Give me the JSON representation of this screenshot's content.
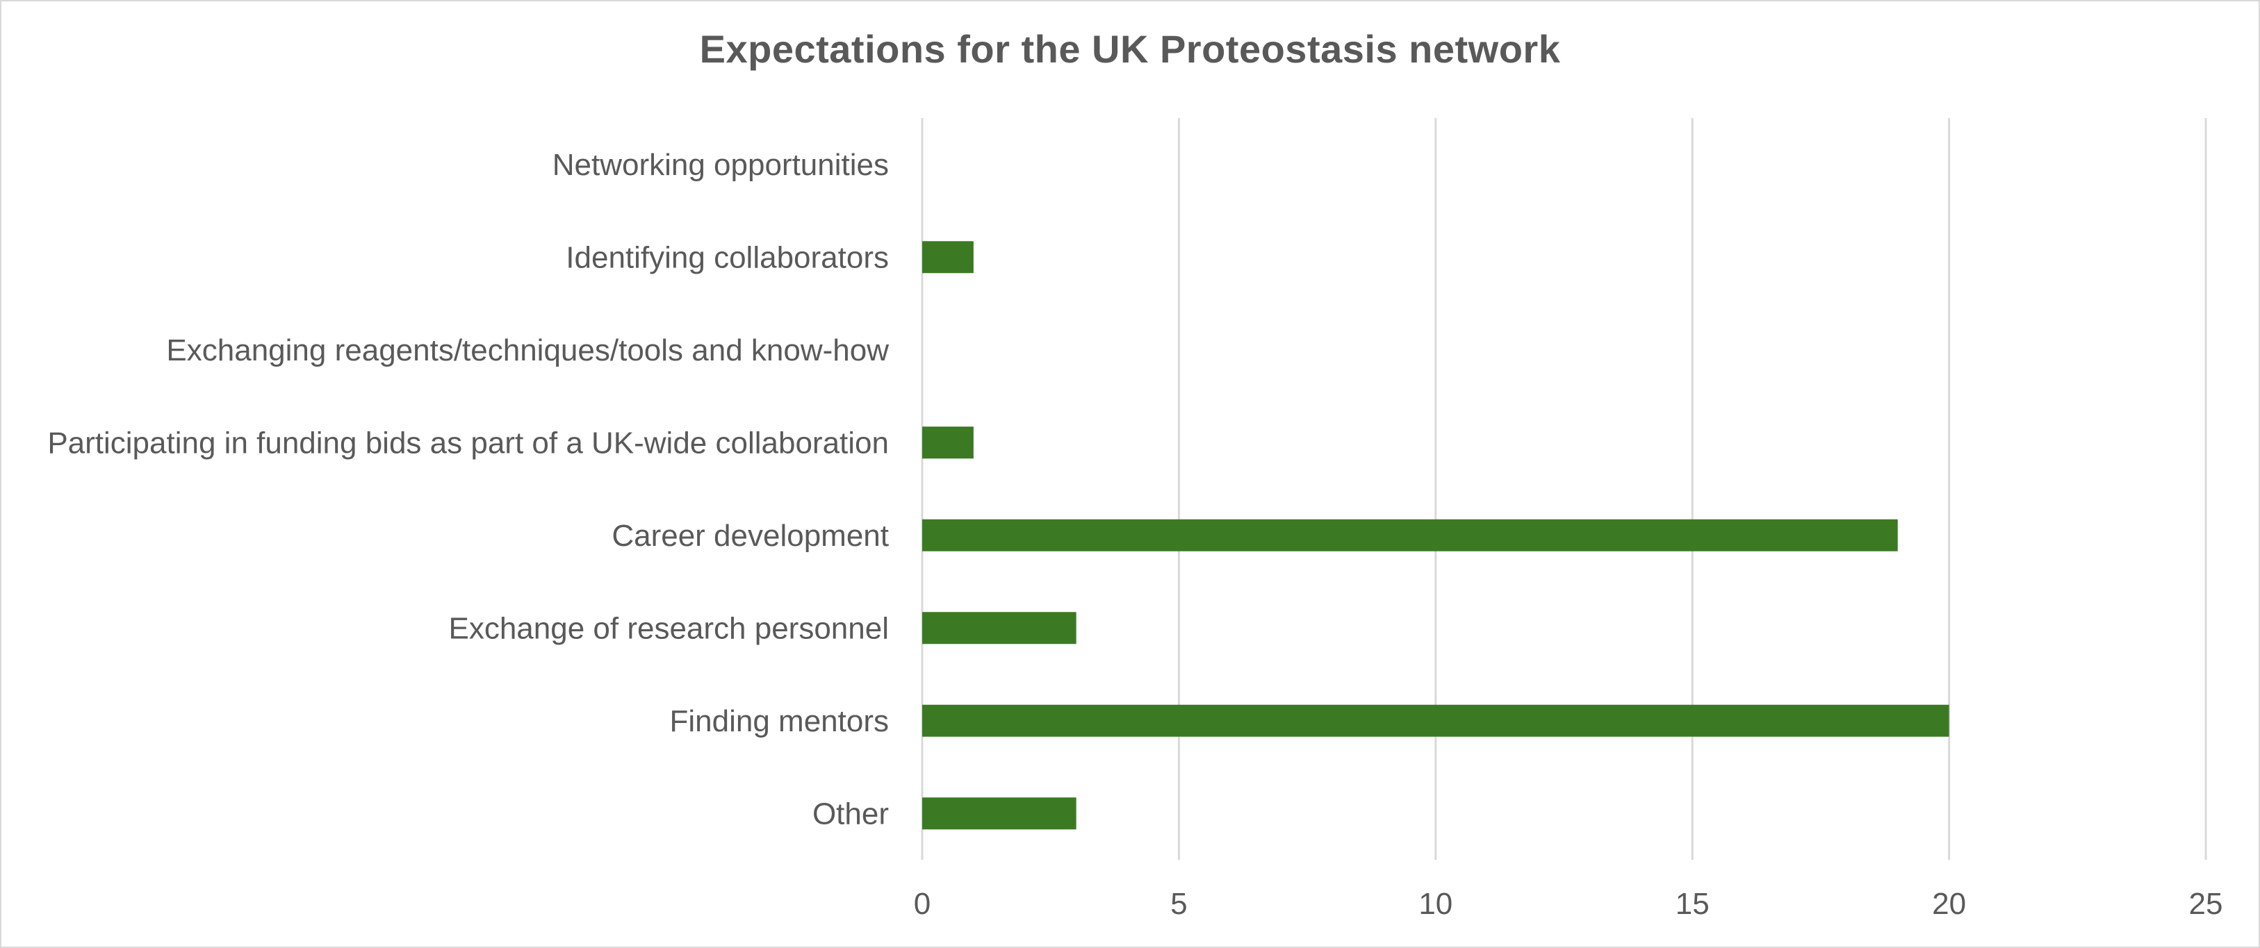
{
  "chart_data": {
    "type": "bar",
    "orientation": "horizontal",
    "title": "Expectations for the UK Proteostasis network",
    "xlabel": "",
    "ylabel": "",
    "categories": [
      "Networking opportunities",
      "Identifying collaborators",
      "Exchanging reagents/techniques/tools and know-how",
      "Participating in funding bids as part of a UK-wide collaboration",
      "Career development",
      "Exchange of research personnel",
      "Finding mentors",
      "Other"
    ],
    "values": [
      0,
      1,
      0,
      1,
      19,
      3,
      20,
      3
    ],
    "xlim": [
      0,
      25
    ],
    "xticks": [
      0,
      5,
      10,
      15,
      20,
      25
    ],
    "grid": "vertical",
    "legend": "none",
    "colors": {
      "bar": "#3b7a22",
      "grid": "#d9d9d9",
      "text": "#595959"
    }
  }
}
